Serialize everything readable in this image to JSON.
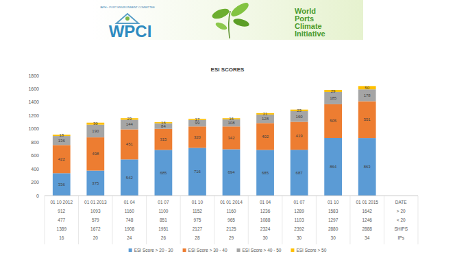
{
  "header": {
    "committee": "IAPH • PORT ENVIRONMENT COMMITTEE",
    "logo": "WPCI",
    "name_lines": [
      "World",
      "Ports",
      "Climate",
      "Initiative"
    ]
  },
  "chart_data": {
    "type": "bar",
    "title": "ESI SCORES",
    "stacked": true,
    "data_labels": true,
    "grid": false,
    "legend": "bottom",
    "categories": [
      "01 10 2012",
      "01 01 2013",
      "01 04",
      "01 07",
      "01 10",
      "01 01 2014",
      "01 04",
      "01 07",
      "01 10",
      "01 01 2015"
    ],
    "series": [
      {
        "name": "ESI Score > 20 - 30",
        "color": "#5b9bd5",
        "values": [
          336,
          375,
          542,
          685,
          716,
          694,
          685,
          687,
          864,
          863
        ]
      },
      {
        "name": "ESI Score > 30 - 40",
        "color": "#ed7d31",
        "values": [
          422,
          498,
          451,
          315,
          320,
          342,
          402,
          419,
          505,
          551
        ]
      },
      {
        "name": "ESI Score > 40 - 50",
        "color": "#a5a5a5",
        "values": [
          136,
          190,
          144,
          84,
          99,
          108,
          128,
          160,
          185,
          178
        ]
      },
      {
        "name": "ESI Score > 50",
        "color": "#ffc000",
        "values": [
          18,
          30,
          23,
          16,
          17,
          16,
          21,
          23,
          29,
          50
        ]
      }
    ],
    "ylim": [
      0,
      1800
    ],
    "yticks": [
      0,
      200,
      400,
      600,
      800,
      1000,
      1200,
      1400,
      1600,
      1800
    ]
  },
  "table": {
    "header_label": "DATE",
    "rows": [
      {
        "label": "> 20",
        "values": [
          912,
          1093,
          1160,
          1100,
          1152,
          1160,
          1236,
          1289,
          1583,
          1642
        ]
      },
      {
        "label": "< 20",
        "values": [
          477,
          579,
          748,
          851,
          975,
          965,
          1088,
          1103,
          1297,
          1246
        ]
      },
      {
        "label": "SHIPS",
        "values": [
          1389,
          1672,
          1908,
          1951,
          2127,
          2125,
          2324,
          2392,
          2880,
          2888
        ]
      },
      {
        "label": "IPs",
        "values": [
          16,
          20,
          24,
          26,
          28,
          29,
          30,
          30,
          30,
          34
        ]
      }
    ]
  }
}
